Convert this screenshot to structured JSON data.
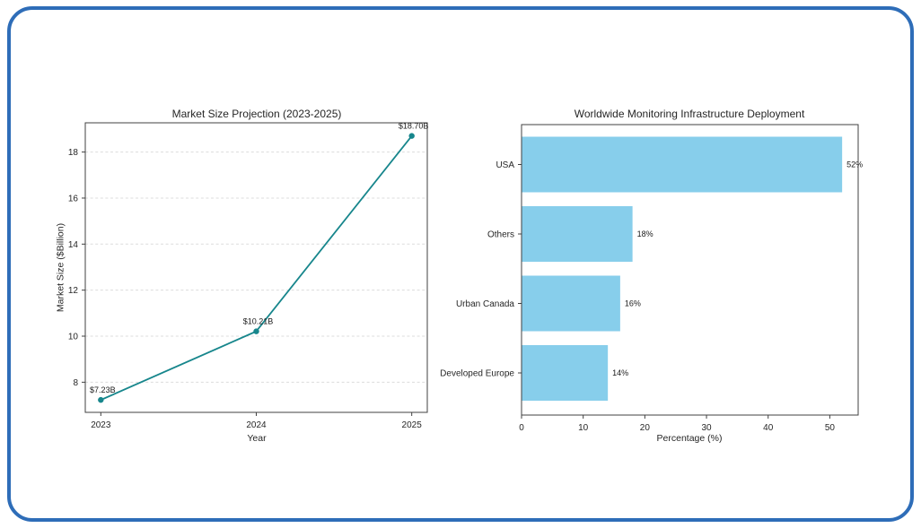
{
  "card": {
    "border_color": "#2E6DB8",
    "background_color": "#FFFFFF"
  },
  "chart_data": [
    {
      "type": "line",
      "title": "Market Size Projection (2023-2025)",
      "xlabel": "Year",
      "ylabel": "Market Size ($Billion)",
      "x": [
        2023,
        2024,
        2025
      ],
      "values": [
        7.23,
        10.21,
        18.7
      ],
      "point_labels": [
        "$7.23B",
        "$10.21B",
        "$18.70B"
      ],
      "xticks": [
        "2023",
        "2024",
        "2025"
      ],
      "yticks": [
        8,
        10,
        12,
        14,
        16,
        18
      ],
      "xlim": [
        2022.9,
        2025.1
      ],
      "ylim": [
        6.69,
        19.27
      ],
      "grid": "horizontal-dashed",
      "legend": "none",
      "line_color": "#17868C",
      "marker": "circle"
    },
    {
      "type": "bar",
      "orientation": "horizontal",
      "title": "Worldwide Monitoring Infrastructure Deployment",
      "xlabel": "Percentage (%)",
      "ylabel": "",
      "categories": [
        "USA",
        "Others",
        "Urban Canada",
        "Developed Europe"
      ],
      "values": [
        52,
        18,
        16,
        14
      ],
      "bar_labels": [
        "52%",
        "18%",
        "16%",
        "14%"
      ],
      "xticks": [
        0,
        10,
        20,
        30,
        40,
        50
      ],
      "xlim": [
        0,
        54.6
      ],
      "grid": "off",
      "legend": "none",
      "bar_color": "#87CEEB"
    }
  ],
  "style": {
    "grid_color": "#DCDCDC",
    "spine_color": "#404040",
    "text_color": "#262626"
  }
}
